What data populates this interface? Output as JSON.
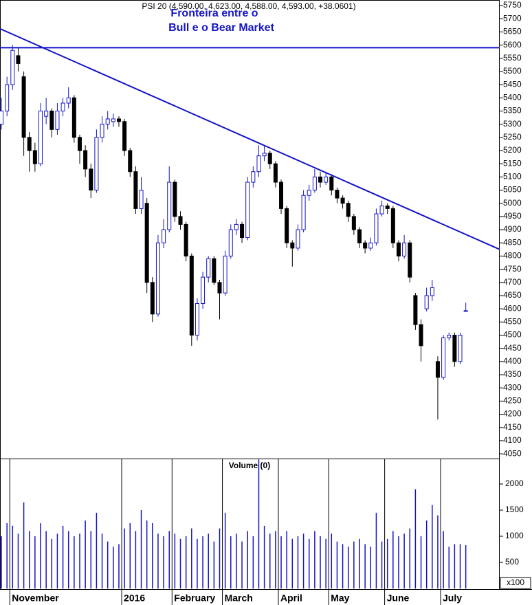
{
  "chart_data": {
    "type": "candlestick",
    "title": "PSI 20 (4,590.00, 4,623.00, 4,588.00, 4,593.00, +38.0601)",
    "annotation": [
      "Fronteira entre o",
      "Bull e o Bear Market"
    ],
    "categories": [
      null,
      null,
      "November",
      null,
      null,
      null,
      null,
      null,
      null,
      null,
      null,
      null,
      null,
      null,
      null,
      null,
      null,
      null,
      null,
      null,
      null,
      null,
      "2016",
      null,
      null,
      null,
      null,
      null,
      null,
      null,
      null,
      "February",
      null,
      null,
      null,
      null,
      null,
      null,
      null,
      null,
      "March",
      null,
      null,
      null,
      null,
      null,
      null,
      null,
      null,
      null,
      "April",
      null,
      null,
      null,
      null,
      null,
      null,
      null,
      null,
      "May",
      null,
      null,
      null,
      null,
      null,
      null,
      null,
      null,
      null,
      "June",
      null,
      null,
      null,
      null,
      null,
      null,
      null,
      null,
      null,
      "July",
      null,
      null,
      null,
      null
    ],
    "ohlc": [
      [
        5300,
        5400,
        5280,
        5350
      ],
      [
        5350,
        5480,
        5330,
        5450
      ],
      [
        5450,
        5600,
        5430,
        5580
      ],
      [
        5560,
        5590,
        5500,
        5530
      ],
      [
        5480,
        5500,
        5180,
        5250
      ],
      [
        5250,
        5270,
        5120,
        5200
      ],
      [
        5200,
        5230,
        5120,
        5150
      ],
      [
        5150,
        5380,
        5140,
        5350
      ],
      [
        5330,
        5400,
        5300,
        5350
      ],
      [
        5350,
        5360,
        5250,
        5280
      ],
      [
        5280,
        5380,
        5260,
        5350
      ],
      [
        5350,
        5400,
        5330,
        5380
      ],
      [
        5380,
        5440,
        5360,
        5400
      ],
      [
        5400,
        5410,
        5230,
        5250
      ],
      [
        5250,
        5260,
        5150,
        5200
      ],
      [
        5200,
        5220,
        5100,
        5130
      ],
      [
        5130,
        5150,
        5020,
        5050
      ],
      [
        5050,
        5280,
        5040,
        5250
      ],
      [
        5250,
        5330,
        5230,
        5300
      ],
      [
        5300,
        5350,
        5280,
        5320
      ],
      [
        5310,
        5340,
        5290,
        5320
      ],
      [
        5320,
        5330,
        5290,
        5310
      ],
      [
        5310,
        5320,
        5180,
        5200
      ],
      [
        5200,
        5210,
        5100,
        5120
      ],
      [
        5120,
        5140,
        4960,
        4980
      ],
      [
        4980,
        5100,
        4960,
        5050
      ],
      [
        5000,
        5020,
        4660,
        4700
      ],
      [
        4700,
        4720,
        4550,
        4580
      ],
      [
        4580,
        4880,
        4570,
        4850
      ],
      [
        4850,
        4940,
        4830,
        4900
      ],
      [
        4900,
        5140,
        4890,
        5080
      ],
      [
        5080,
        5090,
        4930,
        4950
      ],
      [
        4950,
        4970,
        4900,
        4920
      ],
      [
        4920,
        4930,
        4780,
        4800
      ],
      [
        4800,
        4810,
        4460,
        4500
      ],
      [
        4500,
        4640,
        4480,
        4620
      ],
      [
        4620,
        4740,
        4600,
        4720
      ],
      [
        4720,
        4800,
        4700,
        4790
      ],
      [
        4790,
        4800,
        4690,
        4700
      ],
      [
        4700,
        4710,
        4560,
        4660
      ],
      [
        4660,
        4820,
        4650,
        4800
      ],
      [
        4800,
        4920,
        4790,
        4900
      ],
      [
        4900,
        4940,
        4880,
        4920
      ],
      [
        4920,
        4930,
        4850,
        4870
      ],
      [
        4870,
        5100,
        4860,
        5080
      ],
      [
        5080,
        5140,
        5060,
        5120
      ],
      [
        5120,
        5220,
        5100,
        5180
      ],
      [
        5180,
        5220,
        5160,
        5190
      ],
      [
        5190,
        5200,
        5130,
        5150
      ],
      [
        5150,
        5160,
        5060,
        5080
      ],
      [
        5080,
        5090,
        4960,
        4980
      ],
      [
        4980,
        4990,
        4830,
        4850
      ],
      [
        4850,
        4860,
        4760,
        4830
      ],
      [
        4830,
        4920,
        4820,
        4900
      ],
      [
        4900,
        5050,
        4890,
        5030
      ],
      [
        5030,
        5070,
        5010,
        5050
      ],
      [
        5050,
        5130,
        5040,
        5100
      ],
      [
        5100,
        5120,
        5060,
        5080
      ],
      [
        5080,
        5120,
        5070,
        5100
      ],
      [
        5100,
        5110,
        5030,
        5050
      ],
      [
        5050,
        5060,
        5000,
        5020
      ],
      [
        5020,
        5030,
        4980,
        5000
      ],
      [
        5000,
        5010,
        4930,
        4950
      ],
      [
        4950,
        4960,
        4880,
        4900
      ],
      [
        4900,
        4910,
        4830,
        4850
      ],
      [
        4850,
        4860,
        4810,
        4830
      ],
      [
        4830,
        4870,
        4820,
        4850
      ],
      [
        4850,
        4980,
        4840,
        4960
      ],
      [
        4960,
        5010,
        4950,
        4990
      ],
      [
        4990,
        5000,
        4960,
        4980
      ],
      [
        4980,
        4990,
        4830,
        4850
      ],
      [
        4850,
        4860,
        4780,
        4800
      ],
      [
        4800,
        4880,
        4790,
        4850
      ],
      [
        4850,
        4860,
        4700,
        4720
      ],
      [
        4650,
        4660,
        4520,
        4540
      ],
      [
        4540,
        4560,
        4400,
        4460
      ],
      [
        4600,
        4680,
        4590,
        4650
      ],
      [
        4650,
        4710,
        4630,
        4680
      ],
      [
        4400,
        4420,
        4180,
        4340
      ],
      [
        4340,
        4500,
        4330,
        4490
      ],
      [
        4490,
        4510,
        4480,
        4500
      ],
      [
        4500,
        4510,
        4380,
        4400
      ],
      [
        4400,
        4510,
        4390,
        4500
      ],
      [
        4590,
        4623,
        4588,
        4593
      ]
    ],
    "up_color": "#1414c8",
    "down_color": "#000000",
    "line_color": "#1414c8",
    "hlines": [
      5590
    ],
    "trendline": {
      "x": [
        -0.25,
        89.07
      ],
      "y": [
        5662,
        4825
      ]
    },
    "ylim": [
      4032,
      5771
    ],
    "yticks": [
      4050,
      4100,
      4150,
      4200,
      4250,
      4300,
      4350,
      4400,
      4450,
      4500,
      4550,
      4600,
      4650,
      4700,
      4750,
      4800,
      4850,
      4900,
      4950,
      5000,
      5050,
      5100,
      5150,
      5200,
      5250,
      5300,
      5350,
      5400,
      5450,
      5500,
      5550,
      5600,
      5650,
      5700,
      5750
    ],
    "volume": {
      "title": "Volume (0)",
      "unit": "x100",
      "color": "#1414c8",
      "values": [
        1000,
        1250,
        1200,
        1050,
        1650,
        1100,
        1000,
        1250,
        1100,
        950,
        1050,
        1200,
        1100,
        1000,
        1050,
        1300,
        1100,
        1450,
        1050,
        900,
        800,
        850,
        1150,
        1250,
        1100,
        1500,
        1300,
        1250,
        1050,
        1000,
        1100,
        1050,
        950,
        1000,
        1150,
        950,
        1000,
        1050,
        900,
        1150,
        1450,
        1000,
        1050,
        900,
        1100,
        1000,
        2470,
        1200,
        1050,
        1100,
        1000,
        1100,
        950,
        1000,
        1050,
        950,
        1100,
        1000,
        950,
        1050,
        900,
        850,
        800,
        900,
        950,
        850,
        800,
        1450,
        900,
        950,
        1100,
        1000,
        1050,
        1150,
        1900,
        1000,
        1300,
        1600,
        1400,
        1100,
        800,
        850,
        850,
        830
      ],
      "ylim": [
        0,
        2474
      ],
      "yticks": [
        500,
        1000,
        1500,
        2000
      ]
    }
  }
}
